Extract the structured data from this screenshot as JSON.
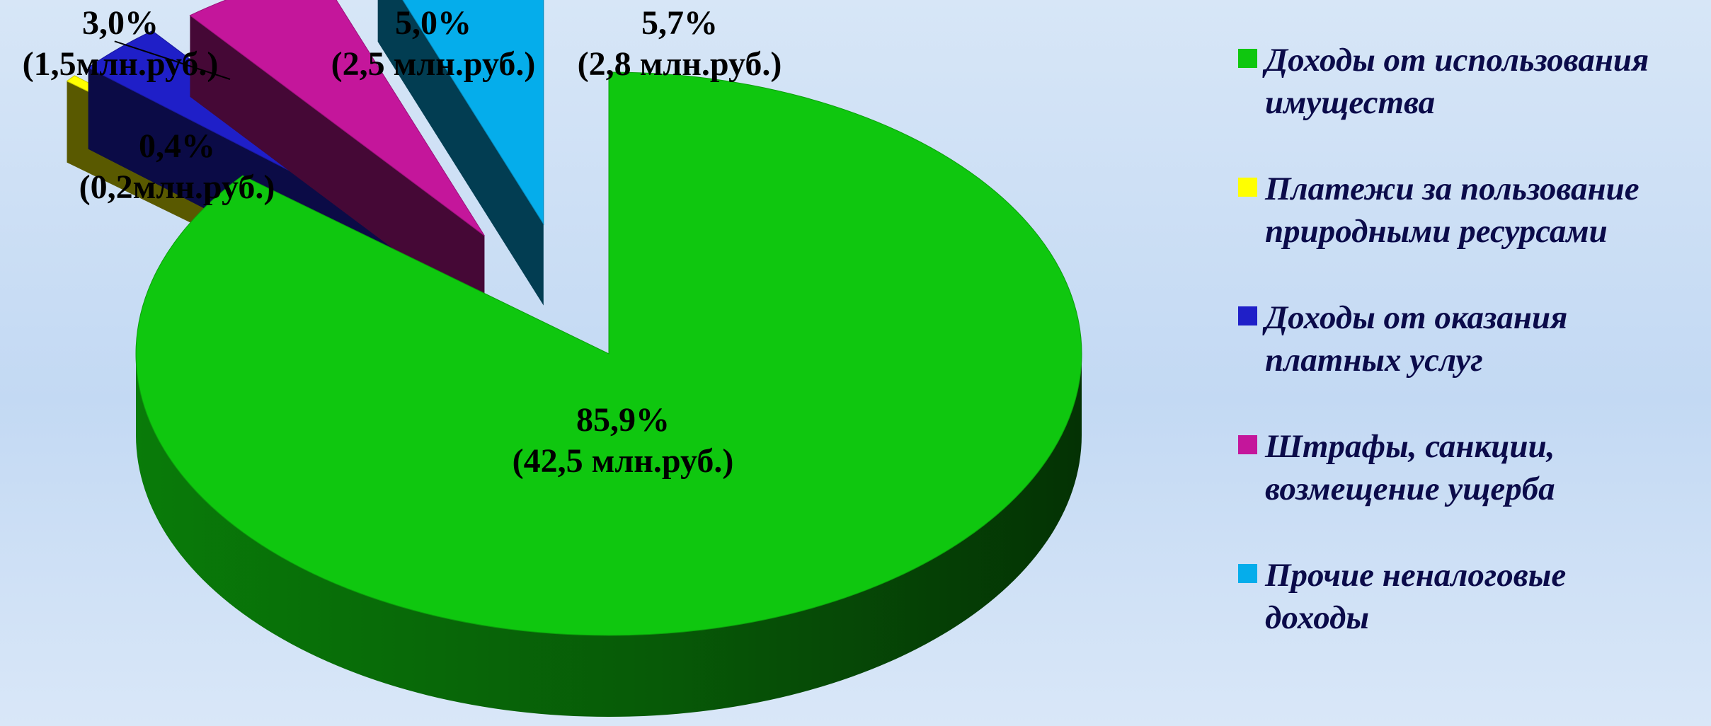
{
  "chart_data": {
    "type": "pie",
    "title": "",
    "unit": "%",
    "slices": [
      {
        "name": "Доходы от использования имущества",
        "value": 85.9,
        "label_pct": "85,9%",
        "label_amount": "(42,5 млн.руб.)",
        "color": "#0fc70f",
        "exploded": false
      },
      {
        "name": "Платежи за пользование природными ресурсами",
        "value": 0.4,
        "label_pct": "0,4%",
        "label_amount": "(0,2млн.руб.)",
        "color": "#ffff00",
        "exploded": true
      },
      {
        "name": "Доходы от оказания платных услуг",
        "value": 3.0,
        "label_pct": "3,0%",
        "label_amount": "(1,5млн.руб.)",
        "color": "#1f1fc8",
        "exploded": true
      },
      {
        "name": "Штрафы, санкции, возмещение ущерба",
        "value": 5.0,
        "label_pct": "5,0%",
        "label_amount": "(2,5 млн.руб.)",
        "color": "#c4169b",
        "exploded": true
      },
      {
        "name": "Прочие неналоговые доходы",
        "value": 5.7,
        "label_pct": "5,7%",
        "label_amount": "(2,8 млн.руб.)",
        "color": "#05adeb",
        "exploded": true
      }
    ],
    "legend_position": "right"
  },
  "legend": {
    "items": [
      {
        "line1": "Доходы от использования",
        "line2": "имущества",
        "color": "#0fc70f"
      },
      {
        "line1": "Платежи за пользование",
        "line2": "природными ресурсами",
        "color": "#ffff00"
      },
      {
        "line1": "Доходы от оказания",
        "line2": "платных услуг",
        "color": "#1f1fc8"
      },
      {
        "line1": "Штрафы, санкции,",
        "line2": "возмещение ущерба",
        "color": "#c4169b"
      },
      {
        "line1": "Прочие неналоговые",
        "line2": "доходы",
        "color": "#05adeb"
      }
    ]
  }
}
